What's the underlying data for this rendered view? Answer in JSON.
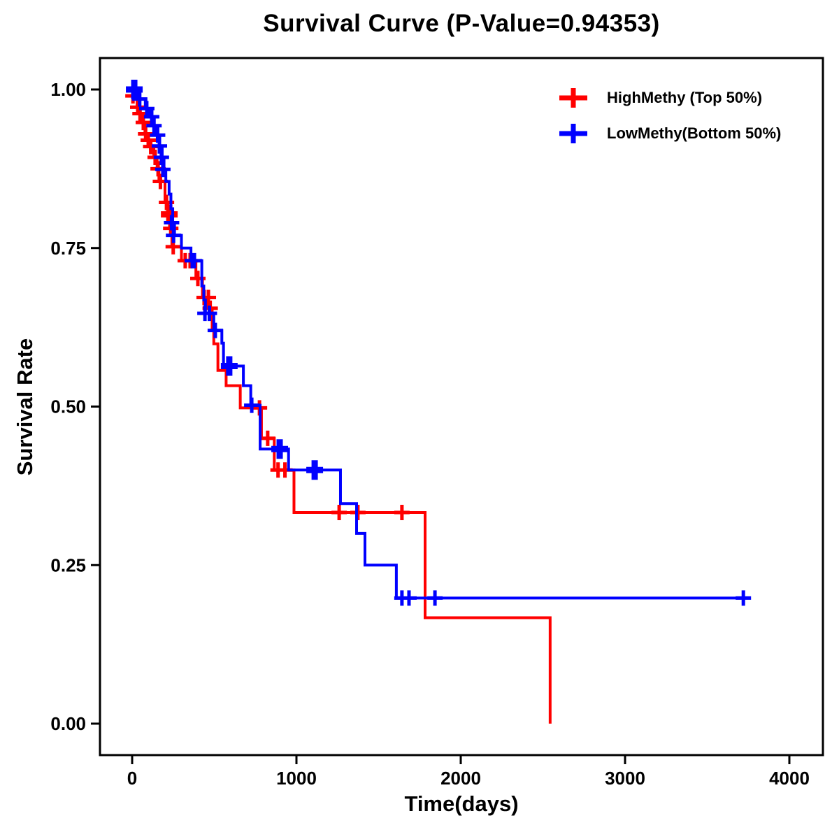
{
  "title": "Survival Curve (P-Value=0.94353)",
  "axes": {
    "x": {
      "label": "Time(days)",
      "tick_labels": [
        "0",
        "1000",
        "2000",
        "3000",
        "4000"
      ]
    },
    "y": {
      "label": "Survival Rate",
      "tick_labels": [
        "0.00",
        "0.25",
        "0.50",
        "0.75",
        "1.00"
      ]
    }
  },
  "legend": {
    "items": [
      {
        "label": "HighMethy (Top 50%)",
        "color": "#ff0000"
      },
      {
        "label": "LowMethy(Bottom 50%)",
        "color": "#0000ff"
      }
    ]
  },
  "chart_data": {
    "type": "line",
    "subtype": "kaplan-meier-step",
    "title": "Survival Curve (P-Value=0.94353)",
    "xlabel": "Time(days)",
    "ylabel": "Survival Rate",
    "xlim": [
      0,
      4200
    ],
    "ylim": [
      0,
      1.0
    ],
    "xticks": [
      0,
      1000,
      2000,
      3000,
      4000
    ],
    "yticks": [
      0,
      0.25,
      0.5,
      0.75,
      1.0
    ],
    "ytick_labels": [
      "0.00",
      "0.25",
      "0.50",
      "0.75",
      "1.00"
    ],
    "grid": false,
    "legend_position": "top-right",
    "axis_color": "#000000",
    "series": [
      {
        "name": "HighMethy (Top 50%)",
        "color": "#ff0000",
        "steps": [
          [
            0,
            0.99
          ],
          [
            30,
            0.972
          ],
          [
            45,
            0.962
          ],
          [
            62,
            0.948
          ],
          [
            78,
            0.93
          ],
          [
            95,
            0.92
          ],
          [
            110,
            0.91
          ],
          [
            132,
            0.893
          ],
          [
            152,
            0.875
          ],
          [
            163,
            0.855
          ],
          [
            200,
            0.822
          ],
          [
            218,
            0.803
          ],
          [
            228,
            0.781
          ],
          [
            242,
            0.752
          ],
          [
            300,
            0.73
          ],
          [
            388,
            0.702
          ],
          [
            428,
            0.672
          ],
          [
            458,
            0.655
          ],
          [
            487,
            0.62
          ],
          [
            497,
            0.599
          ],
          [
            522,
            0.557
          ],
          [
            572,
            0.533
          ],
          [
            658,
            0.498
          ],
          [
            787,
            0.45
          ],
          [
            865,
            0.4
          ],
          [
            985,
            0.333
          ],
          [
            1783,
            0.167
          ],
          [
            2544,
            0.0
          ]
        ],
        "censors": [
          [
            5,
            0.99
          ],
          [
            34,
            0.972
          ],
          [
            48,
            0.962
          ],
          [
            68,
            0.948
          ],
          [
            82,
            0.93
          ],
          [
            98,
            0.92
          ],
          [
            113,
            0.91
          ],
          [
            140,
            0.893
          ],
          [
            158,
            0.875
          ],
          [
            172,
            0.855
          ],
          [
            209,
            0.822
          ],
          [
            226,
            0.803,
            1
          ],
          [
            235,
            0.781
          ],
          [
            250,
            0.752
          ],
          [
            323,
            0.73
          ],
          [
            353,
            0.73
          ],
          [
            400,
            0.702
          ],
          [
            438,
            0.672
          ],
          [
            464,
            0.672
          ],
          [
            475,
            0.655
          ],
          [
            775,
            0.498
          ],
          [
            825,
            0.45
          ],
          [
            888,
            0.4
          ],
          [
            930,
            0.4
          ],
          [
            1260,
            0.333
          ],
          [
            1374,
            0.333
          ],
          [
            1642,
            0.333
          ]
        ]
      },
      {
        "name": "LowMethy(Bottom 50%)",
        "color": "#0000ff",
        "steps": [
          [
            0,
            1.0
          ],
          [
            40,
            0.985
          ],
          [
            80,
            0.97
          ],
          [
            105,
            0.957
          ],
          [
            125,
            0.943
          ],
          [
            148,
            0.928
          ],
          [
            168,
            0.911
          ],
          [
            183,
            0.893
          ],
          [
            194,
            0.874
          ],
          [
            205,
            0.855
          ],
          [
            225,
            0.835
          ],
          [
            236,
            0.812
          ],
          [
            247,
            0.79
          ],
          [
            258,
            0.77
          ],
          [
            300,
            0.75
          ],
          [
            358,
            0.73
          ],
          [
            424,
            0.69
          ],
          [
            436,
            0.668
          ],
          [
            446,
            0.647
          ],
          [
            497,
            0.62
          ],
          [
            546,
            0.6
          ],
          [
            556,
            0.564
          ],
          [
            677,
            0.533
          ],
          [
            722,
            0.502
          ],
          [
            779,
            0.433
          ],
          [
            952,
            0.4
          ],
          [
            1268,
            0.347
          ],
          [
            1366,
            0.3
          ],
          [
            1417,
            0.25
          ],
          [
            1608,
            0.198
          ],
          [
            3720,
            0.198
          ]
        ],
        "censors": [
          [
            13,
            1.0,
            1
          ],
          [
            46,
            0.985
          ],
          [
            89,
            0.97
          ],
          [
            119,
            0.957
          ],
          [
            133,
            0.943
          ],
          [
            155,
            0.928
          ],
          [
            166,
            0.911
          ],
          [
            178,
            0.893
          ],
          [
            187,
            0.874
          ],
          [
            240,
            0.79
          ],
          [
            252,
            0.77
          ],
          [
            366,
            0.73
          ],
          [
            379,
            0.73
          ],
          [
            443,
            0.647
          ],
          [
            470,
            0.647
          ],
          [
            506,
            0.62
          ],
          [
            591,
            0.564,
            1
          ],
          [
            728,
            0.502
          ],
          [
            898,
            0.433,
            1
          ],
          [
            1111,
            0.4,
            1
          ],
          [
            1642,
            0.198
          ],
          [
            1685,
            0.198
          ],
          [
            1843,
            0.198
          ],
          [
            3720,
            0.198
          ]
        ]
      }
    ]
  }
}
